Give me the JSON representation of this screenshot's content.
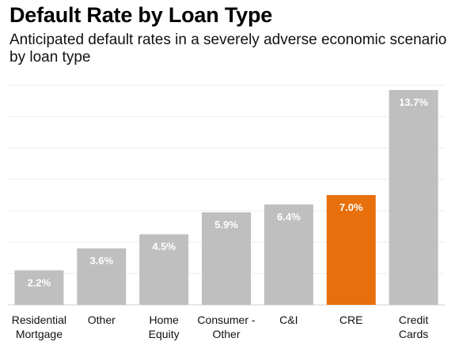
{
  "title": "Default Rate by Loan Type",
  "subtitle": "Anticipated default rates in a severely adverse economic scenario by loan type",
  "chart_data": {
    "type": "bar",
    "title": "Default Rate by Loan Type",
    "subtitle": "Anticipated default rates in a severely adverse economic scenario by loan type",
    "categories": [
      [
        "Residential",
        "Mortgage"
      ],
      [
        "Other"
      ],
      [
        "Home",
        "Equity"
      ],
      [
        "Consumer -",
        "Other"
      ],
      [
        "C&I"
      ],
      [
        "CRE"
      ],
      [
        "Credit",
        "Cards"
      ]
    ],
    "values": [
      2.2,
      3.6,
      4.5,
      5.9,
      6.4,
      7.0,
      13.7
    ],
    "value_labels": [
      "2.2%",
      "3.6%",
      "4.5%",
      "5.9%",
      "6.4%",
      "7.0%",
      "13.7%"
    ],
    "highlight_index": 5,
    "ylim": [
      0,
      14
    ],
    "grid": true,
    "colors": {
      "bar": "#bfbfbf",
      "highlight": "#e8700c",
      "grid": "#eeeeee",
      "axis": "#d0d0d0"
    }
  }
}
